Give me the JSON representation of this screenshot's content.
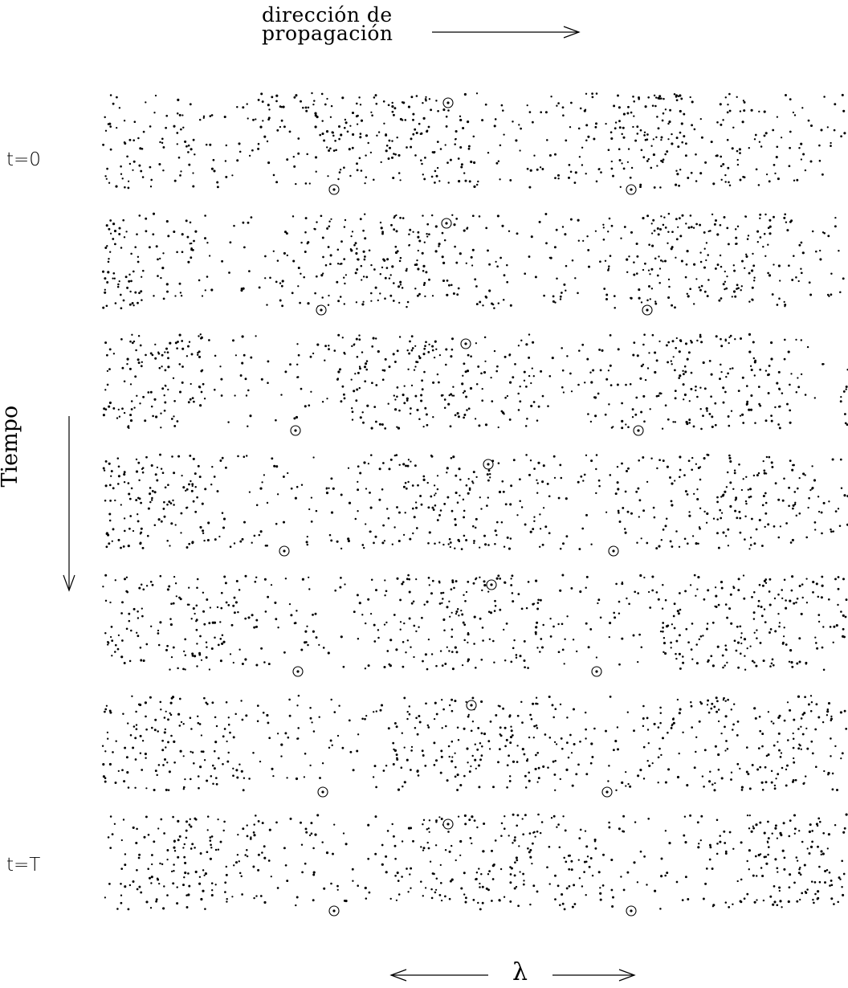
{
  "propagation": {
    "line1": "dirección de",
    "line2": "propagación"
  },
  "time_axis": {
    "label": "Tiempo",
    "start": "t=0",
    "end": "t=T"
  },
  "wavelength": {
    "symbol": "λ"
  },
  "snapshots": [
    {
      "index": 0,
      "label": "t=0"
    },
    {
      "index": 1,
      "label": ""
    },
    {
      "index": 2,
      "label": ""
    },
    {
      "index": 3,
      "label": ""
    },
    {
      "index": 4,
      "label": ""
    },
    {
      "index": 5,
      "label": ""
    },
    {
      "index": 6,
      "label": "t=T"
    }
  ],
  "colors": {
    "ink": "#000000",
    "background": "#ffffff"
  }
}
